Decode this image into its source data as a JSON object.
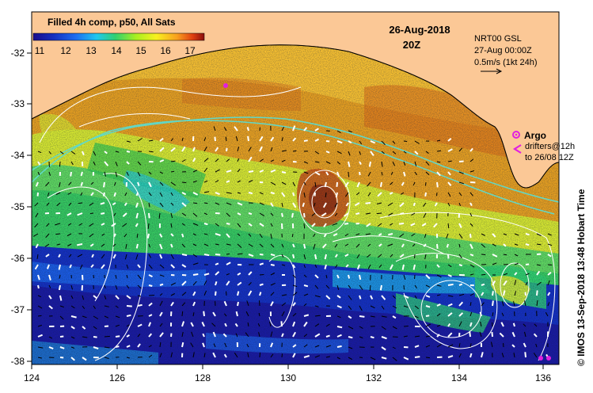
{
  "colorbar": {
    "title": "Filled 4h comp, p50, All Sats",
    "ticks": [
      "11",
      "12",
      "13",
      "14",
      "15",
      "16",
      "17"
    ],
    "colors": [
      "#1a0c8c",
      "#1530c0",
      "#1e6ef0",
      "#20c8f0",
      "#30d070",
      "#a8ef20",
      "#f8f020",
      "#f8a020",
      "#e04010",
      "#8a0e0e"
    ]
  },
  "header": {
    "date": "26-Aug-2018",
    "time": "20Z"
  },
  "info": {
    "line1": "NRT00 GSL",
    "line2": "27-Aug 00:00Z",
    "line3": "0.5m/s (1kt 24h)"
  },
  "legend": {
    "argo": "Argo",
    "drifters1": "drifters@12h",
    "drifters2": "to 26/08 12Z"
  },
  "side_label": "© IMOS 13-Sep-2018 13:48 Hobart Time",
  "axes": {
    "lon_ticks": [
      "124",
      "126",
      "128",
      "130",
      "132",
      "134",
      "136"
    ],
    "lat_ticks": [
      "-32",
      "-33",
      "-34",
      "-35",
      "-36",
      "-37",
      "-38"
    ]
  },
  "colors": {
    "land": "#fbc896",
    "coast": "#000000",
    "isobath": "#60d8c8",
    "contour": "#ffffff",
    "argo": "#e020e0"
  },
  "icons": {
    "argo": "argo-float-icon",
    "drifter": "drifter-chevron-icon",
    "arrow": "scale-arrow-icon"
  }
}
